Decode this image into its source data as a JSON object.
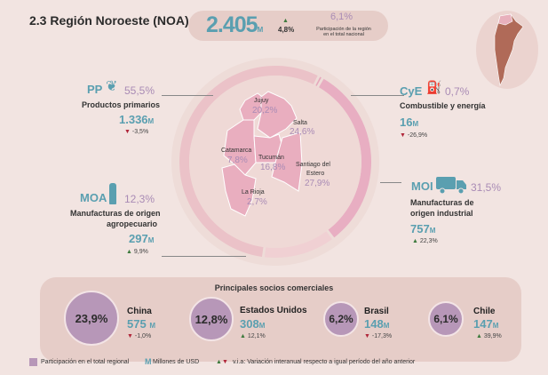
{
  "header": {
    "title": "2.3 Región Noroeste (NOA)",
    "total": "2.405",
    "unit": "M",
    "variation": "4,8%",
    "share": "6,1%",
    "share_label_1": "Participación de la región",
    "share_label_2": "en el total nacional"
  },
  "sectors": {
    "pp": {
      "code": "PP",
      "icon": "wheat-icon",
      "pct": "55,5%",
      "name": "Productos primarios",
      "value": "1.336",
      "unit": "M",
      "variation": "-3,5%",
      "direction": "down"
    },
    "cye": {
      "code": "CyE",
      "icon": "fuel-drop-icon",
      "pct": "0,7%",
      "name": "Combustible y energía",
      "value": "16",
      "unit": "M",
      "variation": "-26,9%",
      "direction": "down"
    },
    "moa": {
      "code": "MOA",
      "icon": "bottle-icon",
      "pct": "12,3%",
      "name_1": "Manufacturas de origen",
      "name_2": "agropecuario",
      "value": "297",
      "unit": "M",
      "variation": "9,9%",
      "direction": "up"
    },
    "moi": {
      "code": "MOI",
      "icon": "truck-icon",
      "pct": "31,5%",
      "name_1": "Manufacturas de",
      "name_2": "origen industrial",
      "value": "757",
      "unit": "M",
      "variation": "22,3%",
      "direction": "up"
    }
  },
  "donut": {
    "shares": [
      0.7,
      31.5,
      12.3,
      55.5
    ],
    "colors": [
      "#e6a8bc",
      "#e8aec2",
      "#f0d0d3",
      "#ebc2c8"
    ]
  },
  "provinces": [
    {
      "name": "Jujuy",
      "pct": "20,2%"
    },
    {
      "name": "Salta",
      "pct": "24,6%"
    },
    {
      "name": "Catamarca",
      "pct": "7,8%"
    },
    {
      "name": "Tucumán",
      "pct": "16,8%"
    },
    {
      "name": "Santiago del",
      "name2": "Estero",
      "pct": "27,9%"
    },
    {
      "name": "La Rioja",
      "pct": "2,7%"
    }
  ],
  "partners": {
    "title": "Principales socios comerciales",
    "items": [
      {
        "name": "China",
        "pct": "23,9%",
        "value": "575",
        "unit": "M",
        "variation": "-1,0%",
        "direction": "down"
      },
      {
        "name": "Estados Unidos",
        "pct": "12,8%",
        "value": "308",
        "unit": "M",
        "variation": "12,1%",
        "direction": "up"
      },
      {
        "name": "Brasil",
        "pct": "6,2%",
        "value": "148",
        "unit": "M",
        "variation": "-17,3%",
        "direction": "down"
      },
      {
        "name": "Chile",
        "pct": "6,1%",
        "value": "147",
        "unit": "M",
        "variation": "39,9%",
        "direction": "up"
      }
    ]
  },
  "legend": {
    "share": "Participación en el total regional",
    "m": "M",
    "m_label": "Millones de USD",
    "via": "v.i.a: Variación interanual respecto a igual período del año anterior"
  },
  "colors": {
    "accent": "#5a9fb0",
    "share": "#a98bb5",
    "bubble": "#b797b8",
    "up": "#3d7a3d",
    "down": "#b0263a",
    "background": "#f2e4e1"
  }
}
